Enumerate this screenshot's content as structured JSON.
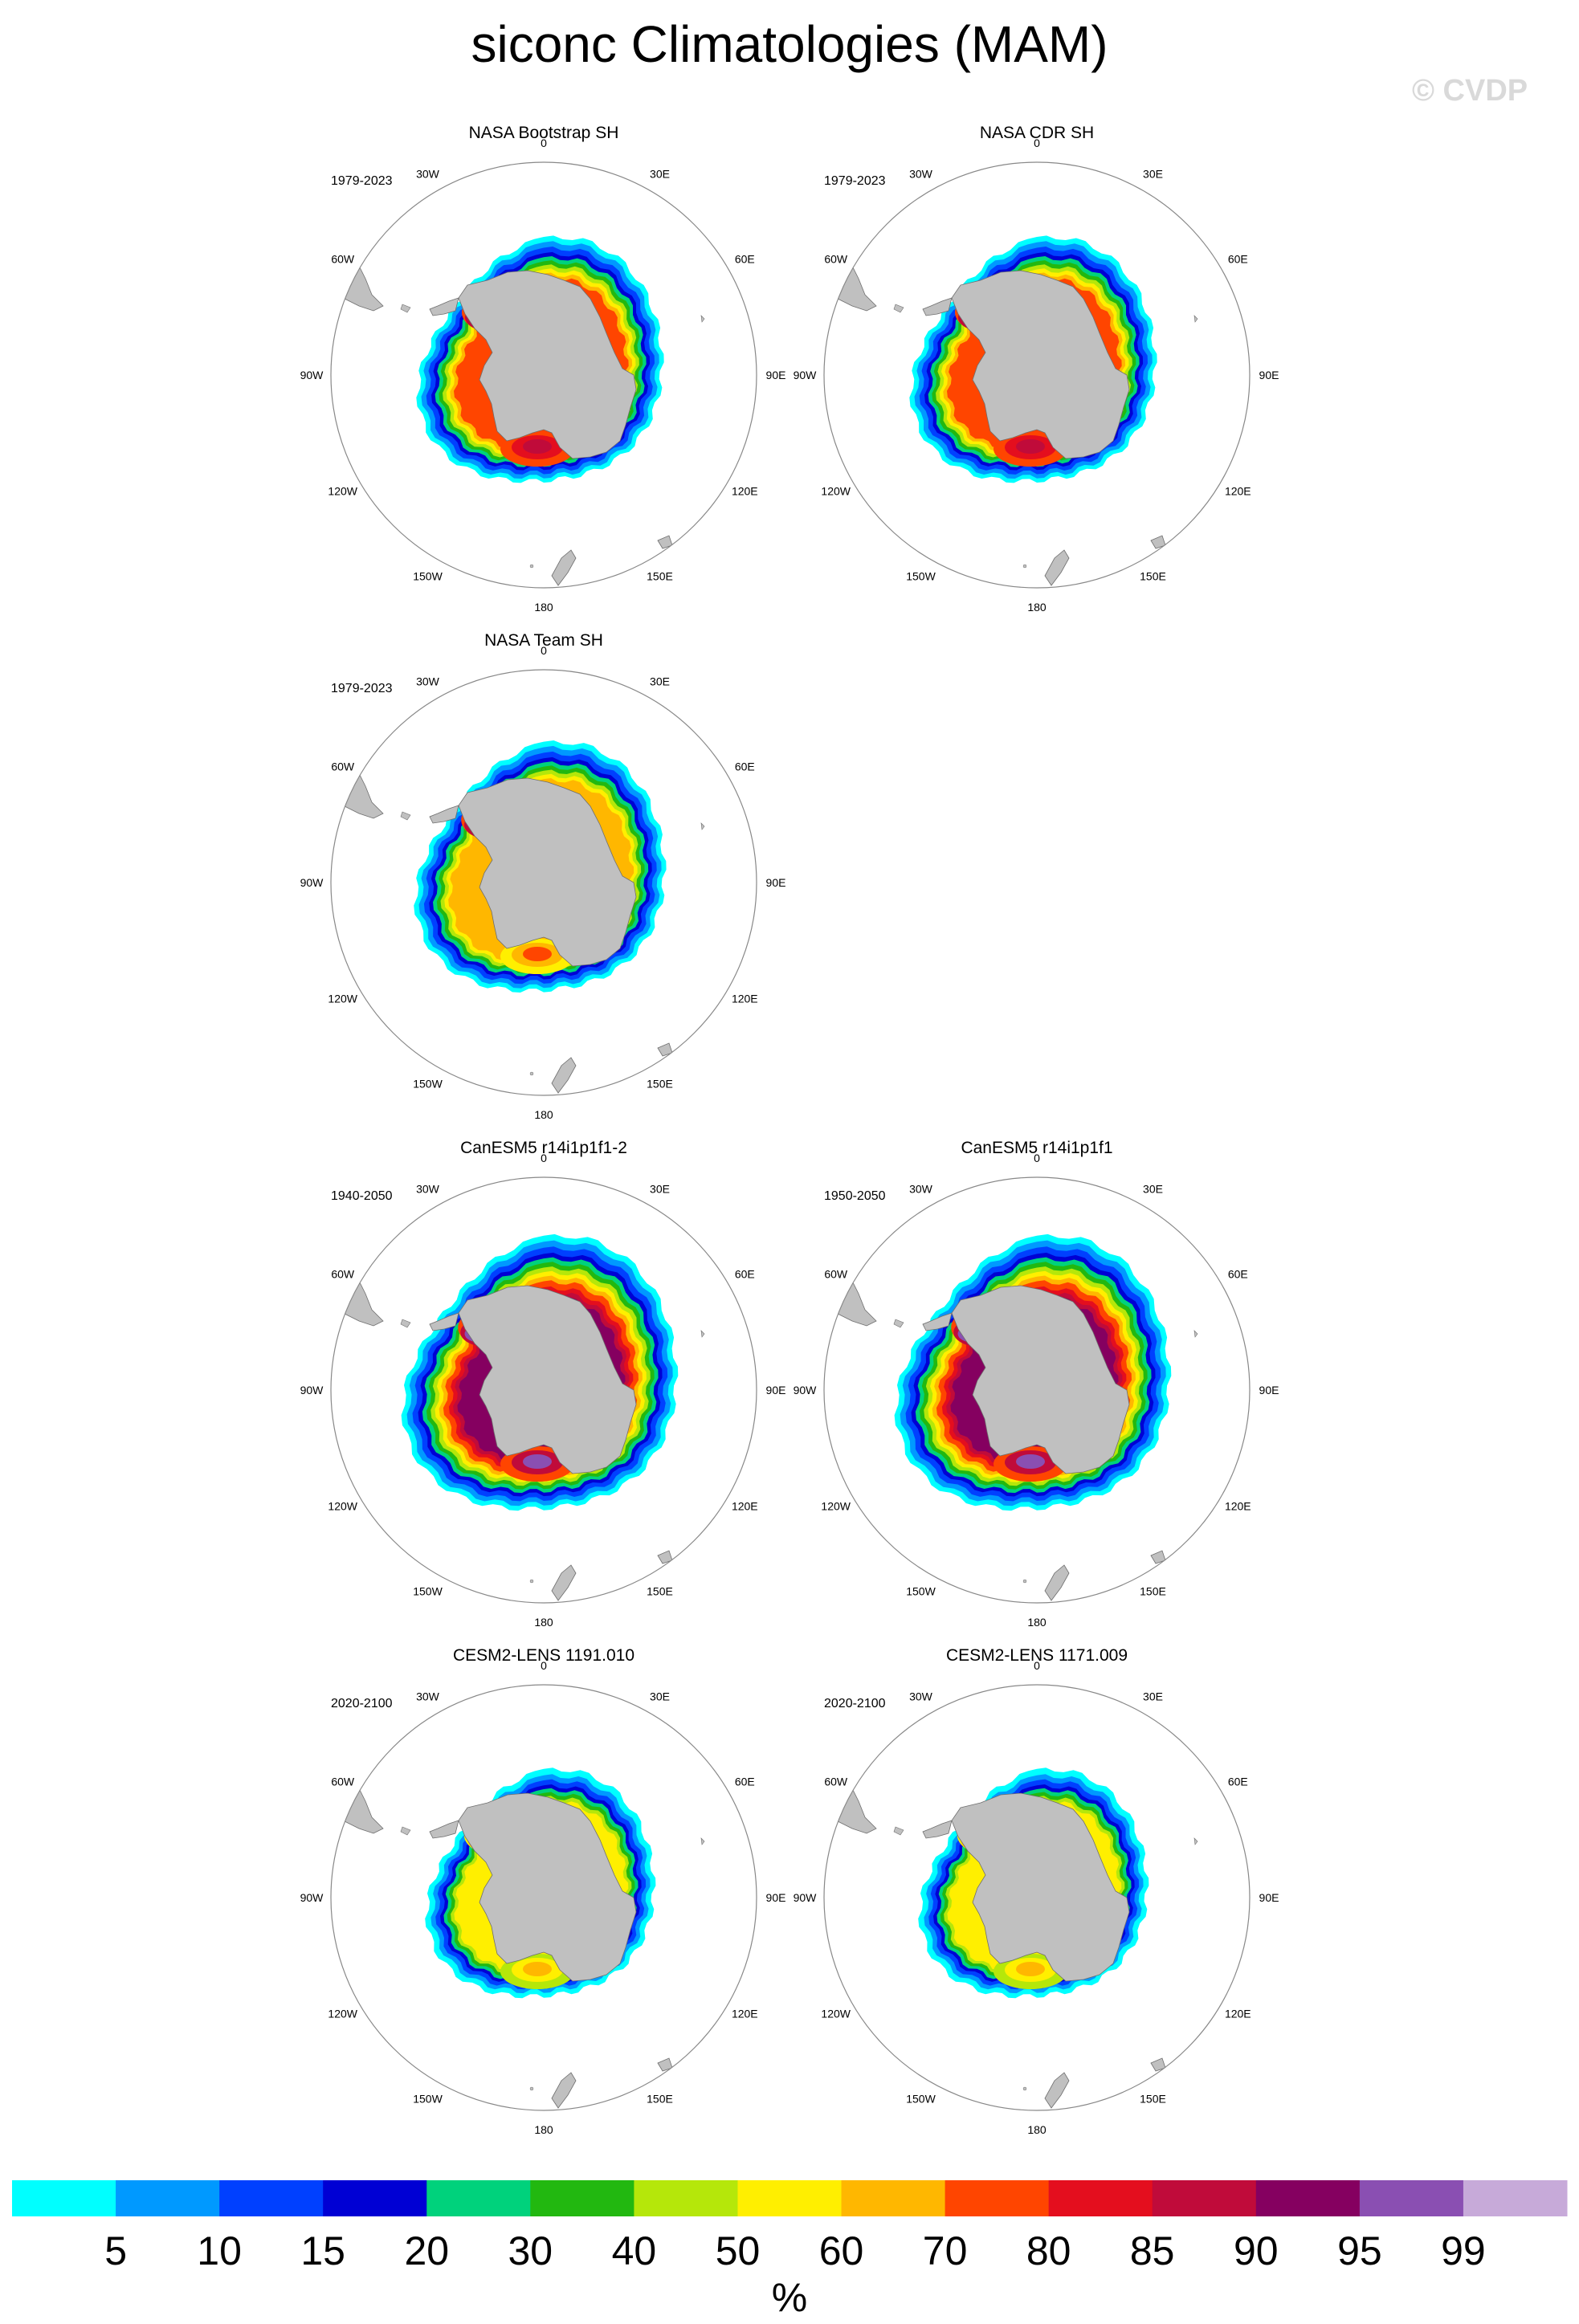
{
  "figure": {
    "title": "siconc Climatologies (MAM)",
    "watermark": "© CVDP"
  },
  "palette": {
    "ocean": "#ffffff",
    "land": "#c0c0c0",
    "coast": "#6e6e6e",
    "ring": "#888888"
  },
  "lon_labels": [
    "0",
    "30E",
    "60E",
    "90E",
    "120E",
    "150E",
    "180",
    "150W",
    "120W",
    "90W",
    "60W",
    "30W"
  ],
  "panels": [
    {
      "id": "p1",
      "title": "NASA Bootstrap SH",
      "years": "1979-2023",
      "row": 0,
      "col": 0,
      "style": "obs",
      "extent": 1.0
    },
    {
      "id": "p2",
      "title": "NASA CDR SH",
      "years": "1979-2023",
      "row": 0,
      "col": 1,
      "style": "obs",
      "extent": 1.0
    },
    {
      "id": "p3",
      "title": "NASA Team SH",
      "years": "1979-2023",
      "row": 1,
      "col": 0,
      "style": "team",
      "extent": 1.02
    },
    {
      "id": "p4",
      "title": "CanESM5 r14i1p1f1-2",
      "years": "1940-2050",
      "row": 2,
      "col": 0,
      "style": "can",
      "extent": 1.12
    },
    {
      "id": "p5",
      "title": "CanESM5 r14i1p1f1",
      "years": "1950-2050",
      "row": 2,
      "col": 1,
      "style": "can",
      "extent": 1.12
    },
    {
      "id": "p6",
      "title": "CESM2-LENS 1191.010",
      "years": "2020-2100",
      "row": 3,
      "col": 0,
      "style": "cesm",
      "extent": 0.93
    },
    {
      "id": "p7",
      "title": "CESM2-LENS 1171.009",
      "years": "2020-2100",
      "row": 3,
      "col": 1,
      "style": "cesm",
      "extent": 0.93
    }
  ],
  "chart_data": {
    "type": "heatmap",
    "variable": "siconc",
    "season": "MAM",
    "projection": "south polar stereographic",
    "units": "%",
    "colorbar": {
      "levels": [
        5,
        10,
        15,
        20,
        30,
        40,
        50,
        60,
        70,
        80,
        85,
        90,
        95,
        99
      ],
      "colors": [
        "#00ffff",
        "#0099ff",
        "#0040ff",
        "#0000d4",
        "#00d27c",
        "#22b810",
        "#b5e70a",
        "#ffef00",
        "#ffb700",
        "#ff4500",
        "#e40e1e",
        "#c00b3a",
        "#850060",
        "#8a4fb2",
        "#c7aad9"
      ],
      "label": "%"
    }
  }
}
